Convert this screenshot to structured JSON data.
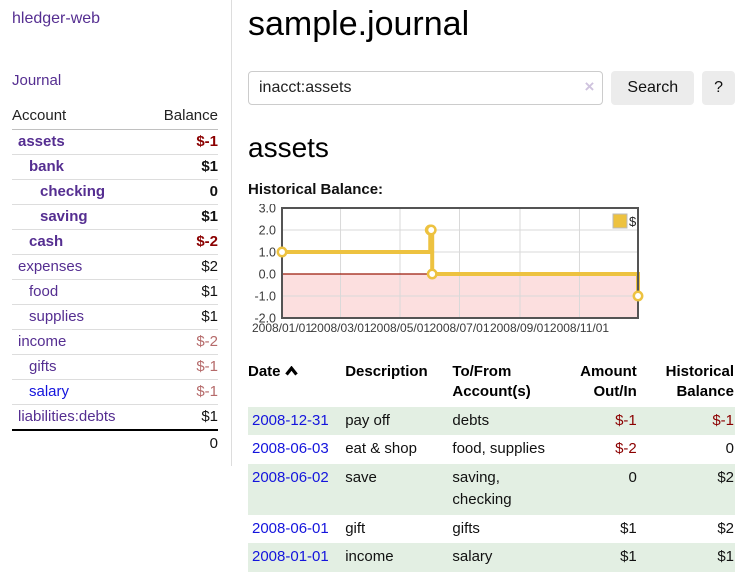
{
  "brand": "hledger-web",
  "nav": {
    "journal": "Journal"
  },
  "sidebar": {
    "header": {
      "account": "Account",
      "balance": "Balance"
    },
    "rows": [
      {
        "account": "assets",
        "balance": "$-1"
      },
      {
        "account": "bank",
        "balance": "$1"
      },
      {
        "account": "checking",
        "balance": "0"
      },
      {
        "account": "saving",
        "balance": "$1"
      },
      {
        "account": "cash",
        "balance": "$-2"
      },
      {
        "account": "expenses",
        "balance": "$2"
      },
      {
        "account": "food",
        "balance": "$1"
      },
      {
        "account": "supplies",
        "balance": "$1"
      },
      {
        "account": "income",
        "balance": "$-2"
      },
      {
        "account": "gifts",
        "balance": "$-1"
      },
      {
        "account": "salary",
        "balance": "$-1"
      },
      {
        "account": "liabilities:debts",
        "balance": "$1"
      }
    ],
    "total": "0"
  },
  "main": {
    "title": "sample.journal",
    "account_heading": "assets",
    "chart_heading": "Historical Balance:"
  },
  "search": {
    "value": "inacct:assets",
    "clear_icon": "×",
    "search_button": "Search",
    "help_button": "?"
  },
  "register": {
    "headers": {
      "date": "Date",
      "description": "Description",
      "accounts": "To/From Account(s)",
      "amount": "Amount Out/In",
      "balance": "Historical Balance"
    },
    "rows": [
      {
        "date": "2008-12-31",
        "description": "pay off",
        "accounts": "debts",
        "amount": "$-1",
        "balance": "$-1"
      },
      {
        "date": "2008-06-03",
        "description": "eat & shop",
        "accounts": "food, supplies",
        "amount": "$-2",
        "balance": "0"
      },
      {
        "date": "2008-06-02",
        "description": "save",
        "accounts": "saving, checking",
        "amount": "0",
        "balance": "$2"
      },
      {
        "date": "2008-06-01",
        "description": "gift",
        "accounts": "gifts",
        "amount": "$1",
        "balance": "$2"
      },
      {
        "date": "2008-01-01",
        "description": "income",
        "accounts": "salary",
        "amount": "$1",
        "balance": "$1"
      }
    ]
  },
  "chart_data": {
    "type": "line",
    "step": true,
    "title": "Historical Balance:",
    "series": [
      {
        "name": "$",
        "color": "#EDC240",
        "points": [
          [
            "2008-01-01",
            1
          ],
          [
            "2008-06-01",
            2
          ],
          [
            "2008-06-02",
            2
          ],
          [
            "2008-06-03",
            0
          ],
          [
            "2008-12-31",
            -1
          ]
        ]
      }
    ],
    "x_range": [
      "2008-01-01",
      "2008-12-31"
    ],
    "x_ticks": [
      {
        "date": "2008-01-01",
        "label": "2008/01/01"
      },
      {
        "date": "2008-03-01",
        "label": "2008/03/01"
      },
      {
        "date": "2008-05-01",
        "label": "2008/05/01"
      },
      {
        "date": "2008-07-01",
        "label": "2008/07/01"
      },
      {
        "date": "2008-09-01",
        "label": "2008/09/01"
      },
      {
        "date": "2008-11-01",
        "label": "2008/11/01"
      }
    ],
    "y_ticks": [
      {
        "v": 3,
        "label": "3.0"
      },
      {
        "v": 2,
        "label": "2.0"
      },
      {
        "v": 1,
        "label": "1.0"
      },
      {
        "v": 0,
        "label": "0.0"
      },
      {
        "v": -1,
        "label": "-1.0"
      },
      {
        "v": -2,
        "label": "-2.0"
      }
    ],
    "ylim": [
      -2,
      3
    ],
    "grid": true,
    "legend": {
      "label": "$",
      "position": "top-right"
    },
    "colors": {
      "line": "#EDC240",
      "negative_fill": "#fcdfdf",
      "zero_line": "#9a1a0a",
      "border": "#545454",
      "grid": "#d9d9d9",
      "tick_text": "#3a3a3a"
    }
  }
}
